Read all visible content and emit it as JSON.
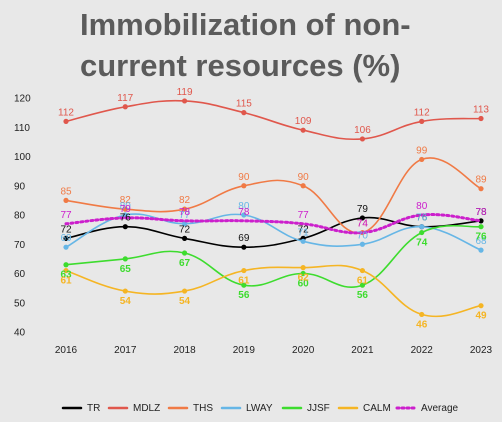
{
  "chart_data": {
    "type": "line",
    "title": "Immobilization of non-current resources (%)",
    "xlabel": "",
    "ylabel": "",
    "x": [
      "2016",
      "2017",
      "2018",
      "2019",
      "2020",
      "2021",
      "2022",
      "2023"
    ],
    "ylim": [
      40,
      120
    ],
    "yticks": [
      40,
      50,
      60,
      70,
      80,
      90,
      100,
      110,
      120
    ],
    "grid": false,
    "legend": "bottom",
    "series": [
      {
        "name": "TR",
        "color": "#000000",
        "dash": false,
        "values": [
          72,
          76,
          72,
          69,
          72,
          79,
          76,
          78
        ]
      },
      {
        "name": "MDLZ",
        "color": "#e0574c",
        "dash": false,
        "values": [
          112,
          117,
          119,
          115,
          109,
          106,
          112,
          113
        ]
      },
      {
        "name": "THS",
        "color": "#f07a45",
        "dash": false,
        "values": [
          85,
          82,
          82,
          90,
          90,
          74,
          99,
          89
        ]
      },
      {
        "name": "LWAY",
        "color": "#66b6e6",
        "dash": false,
        "values": [
          69,
          80,
          77,
          80,
          71,
          70,
          76,
          68
        ]
      },
      {
        "name": "JJSF",
        "color": "#3ddc2e",
        "dash": false,
        "values": [
          63,
          65,
          67,
          56,
          60,
          56,
          74,
          76
        ]
      },
      {
        "name": "CALM",
        "color": "#f5b524",
        "dash": false,
        "values": [
          61,
          54,
          54,
          61,
          62,
          61,
          46,
          49
        ]
      },
      {
        "name": "Average",
        "color": "#cc1fcc",
        "dash": true,
        "values": [
          77,
          79,
          78,
          78,
          77,
          74,
          80,
          78
        ]
      }
    ]
  }
}
